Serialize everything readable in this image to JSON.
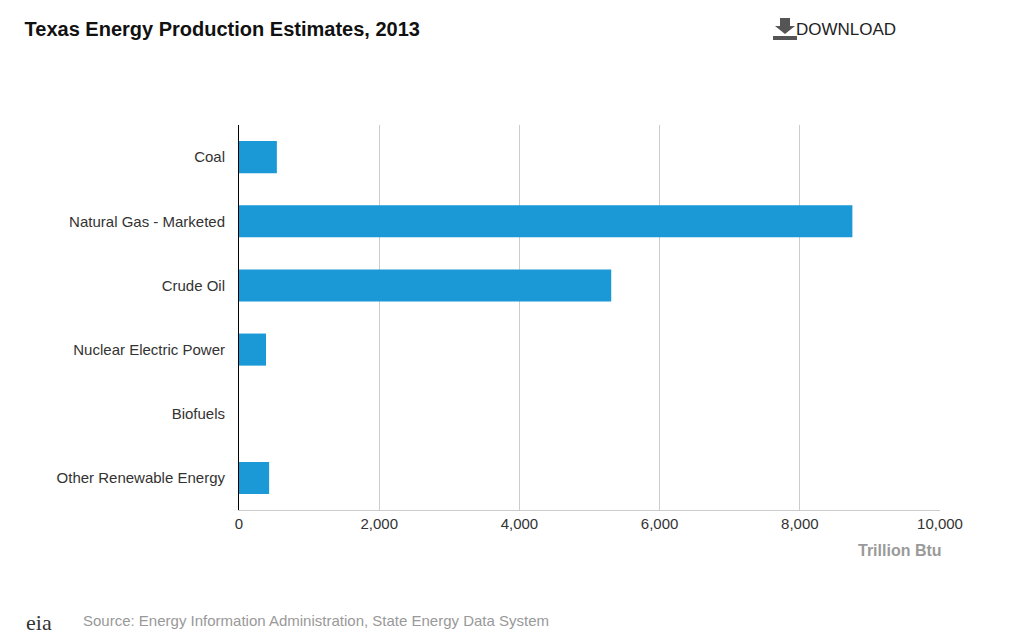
{
  "chart_data": {
    "type": "bar",
    "title": "Texas Energy Production Estimates, 2013",
    "orientation": "horizontal",
    "categories": [
      "Coal",
      "Natural Gas - Marketed",
      "Crude Oil",
      "Nuclear Electric Power",
      "Biofuels",
      "Other Renewable Energy"
    ],
    "values": [
      540,
      8750,
      5310,
      385,
      0,
      430
    ],
    "color": "#1b98d6",
    "x_label": "Trillion Btu",
    "xlim": [
      0,
      10000
    ],
    "xticks": [
      0,
      {
        "value": 2000,
        "label": "2,000"
      },
      {
        "value": 4000,
        "label": "4,000"
      },
      {
        "value": 6000,
        "label": "6,000"
      },
      {
        "value": 8000,
        "label": "8,000"
      },
      {
        "value": 10000,
        "label": "10,000"
      }
    ],
    "grid": true,
    "annotations": [
      "DOWNLOAD",
      "Source: Energy Information Administration, State Energy Data System",
      "eia"
    ]
  }
}
